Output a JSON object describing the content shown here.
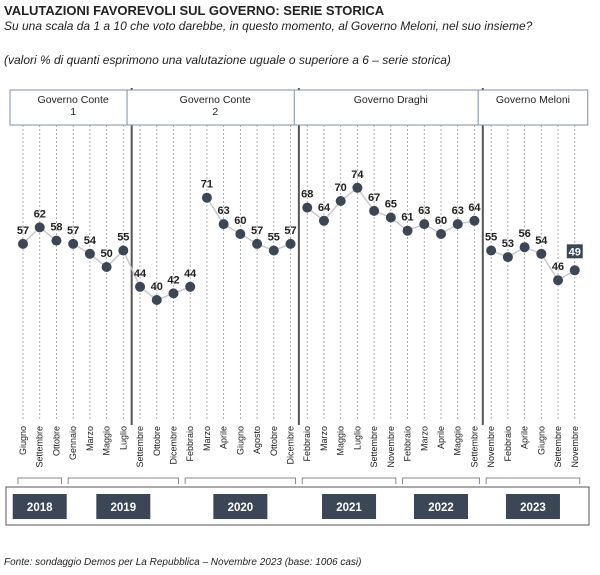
{
  "title": "VALUTAZIONI FAVOREVOLI SUL GOVERNO: SERIE STORICA",
  "subtitle": "Su una scala da 1 a 10 che voto darebbe, in questo momento, al Governo Meloni, nel suo insieme?",
  "note": "(valori % di quanti esprimono una valutazione uguale o superiore a 6 – serie storica)",
  "source": "Fonte: sondaggio Demos per La Repubblica – Novembre 2023 (base: 1006 casi)",
  "colors": {
    "point": "#3b4656",
    "line": "#c9c9c9",
    "year_box": "#3b4656",
    "year_text": "#ffffff",
    "highlight_box": "#3b4656",
    "divider": "#555555"
  },
  "chart_data": {
    "type": "line",
    "x": [
      "Giugno",
      "Settembre",
      "Ottobre",
      "Gennaio",
      "Marzo",
      "Maggio",
      "Luglio",
      "Settembre",
      "Ottobre",
      "Dicembre",
      "Febbraio",
      "Marzo",
      "Aprile",
      "Giugno",
      "Agosto",
      "Ottobre",
      "Dicembre",
      "Febbraio",
      "Marzo",
      "Maggio",
      "Luglio",
      "Settembre",
      "Novembre",
      "Febbraio",
      "Marzo",
      "Aprile",
      "Maggio",
      "Settembre",
      "Novembre",
      "Febbraio",
      "Aprile",
      "Giugno",
      "Settembre",
      "Novembre"
    ],
    "series": [
      {
        "values": [
          57,
          62,
          58,
          57,
          54,
          50,
          55,
          44,
          40,
          42,
          44,
          71,
          63,
          60,
          57,
          55,
          57,
          68,
          64,
          70,
          74,
          67,
          65,
          61,
          63,
          60,
          63,
          64,
          55,
          53,
          56,
          54,
          46,
          49
        ]
      }
    ],
    "segment_breaks": [
      3,
      11,
      17,
      28
    ],
    "governments": [
      {
        "label": "Governo Conte\n1",
        "start": 0,
        "end": 6
      },
      {
        "label": "Governo Conte\n2",
        "start": 7,
        "end": 16
      },
      {
        "label": "Governo Draghi",
        "start": 17,
        "end": 27
      },
      {
        "label": "Governo Meloni",
        "start": 28,
        "end": 33
      }
    ],
    "years": [
      {
        "label": "2018",
        "start": 0,
        "end": 2
      },
      {
        "label": "2019",
        "start": 3,
        "end": 9
      },
      {
        "label": "2020",
        "start": 10,
        "end": 16
      },
      {
        "label": "2021",
        "start": 17,
        "end": 22
      },
      {
        "label": "2022",
        "start": 23,
        "end": 27
      },
      {
        "label": "2023",
        "start": 28,
        "end": 33
      }
    ],
    "highlight_last": true,
    "grid": "vertical-dashed"
  }
}
